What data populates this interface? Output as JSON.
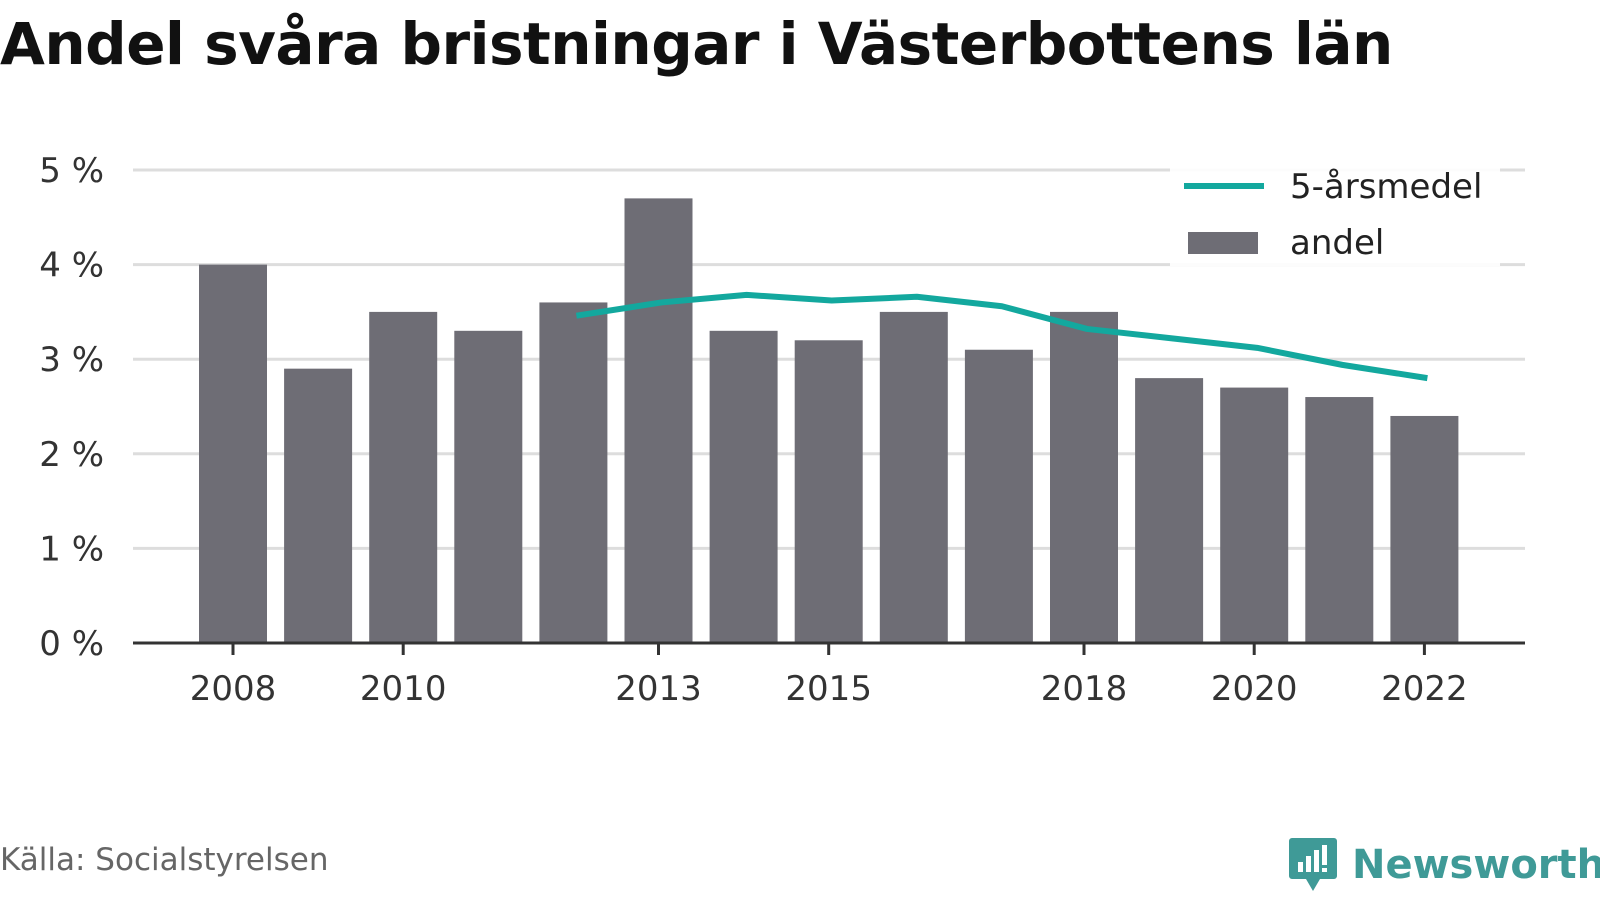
{
  "title": "Andel svåra bristningar i Västerbottens län",
  "source": "Källa: Socialstyrelsen",
  "brand": "Newsworthy",
  "chart_data": {
    "type": "bar",
    "title": "Andel svåra bristningar i Västerbottens län",
    "x": [
      2008,
      2009,
      2010,
      2011,
      2012,
      2013,
      2014,
      2015,
      2016,
      2017,
      2018,
      2019,
      2020,
      2021,
      2022
    ],
    "x_tick_labels": [
      "2008",
      "2010",
      "2013",
      "2015",
      "2018",
      "2020",
      "2022"
    ],
    "x_tick_years": [
      2008,
      2010,
      2013,
      2015,
      2018,
      2020,
      2022
    ],
    "y_tick_labels": [
      "0 %",
      "1 %",
      "2 %",
      "3 %",
      "4 %",
      "5 %"
    ],
    "y_ticks": [
      0,
      1,
      2,
      3,
      4,
      5
    ],
    "ylim": [
      0,
      5
    ],
    "grid": true,
    "legend_position": "top-right",
    "series": [
      {
        "name": "andel",
        "kind": "bar",
        "color": "#6e6d75",
        "values": [
          4.0,
          2.9,
          3.5,
          3.3,
          3.6,
          4.7,
          3.3,
          3.2,
          3.5,
          3.1,
          3.5,
          2.8,
          2.7,
          2.6,
          2.4
        ]
      },
      {
        "name": "5-årsmedel",
        "kind": "line",
        "color": "#13a89e",
        "x": [
          2012,
          2013,
          2014,
          2015,
          2016,
          2017,
          2018,
          2019,
          2020,
          2021,
          2022
        ],
        "values": [
          3.46,
          3.6,
          3.68,
          3.62,
          3.66,
          3.56,
          3.32,
          3.22,
          3.12,
          2.94,
          2.8
        ]
      }
    ]
  }
}
